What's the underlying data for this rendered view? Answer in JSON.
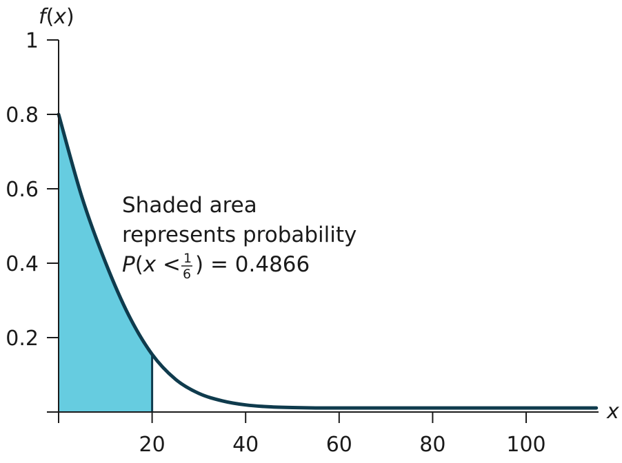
{
  "chart_data": {
    "type": "area",
    "xlabel": "x",
    "ylabel": "f(x)",
    "ylabel_parts": {
      "func": "f",
      "open": "(",
      "var": "x",
      "close": ")"
    },
    "xlim": [
      0,
      115
    ],
    "ylim": [
      0,
      1
    ],
    "x_ticks": [
      20,
      40,
      60,
      80,
      100
    ],
    "x_tick_labels": [
      "20",
      "40",
      "60",
      "80",
      "100"
    ],
    "y_ticks": [
      0.2,
      0.4,
      0.6,
      0.8,
      1
    ],
    "y_tick_labels": [
      "0.2",
      "0.4",
      "0.6",
      "0.8",
      "1"
    ],
    "curve": {
      "x": [
        0,
        5,
        10,
        15,
        20,
        25,
        30,
        35,
        40,
        45,
        50,
        55,
        60,
        70,
        80,
        90,
        100,
        115
      ],
      "y": [
        0.8,
        0.577,
        0.403,
        0.26,
        0.155,
        0.088,
        0.05,
        0.03,
        0.019,
        0.014,
        0.012,
        0.011,
        0.011,
        0.011,
        0.011,
        0.011,
        0.011,
        0.011
      ]
    },
    "shaded_region": {
      "x_from": 0,
      "x_to": 20,
      "color": "#66cce0"
    },
    "line_color": "#0f3b4d",
    "grid": false,
    "annotation": {
      "line1": "Shaded area",
      "line2": "represents probability",
      "line3_prefix": "P",
      "line3_open": "(",
      "line3_var": "x",
      "line3_lt": " < ",
      "frac_num": "1",
      "frac_den": "6",
      "line3_suffix": ") = 0.4866"
    }
  }
}
